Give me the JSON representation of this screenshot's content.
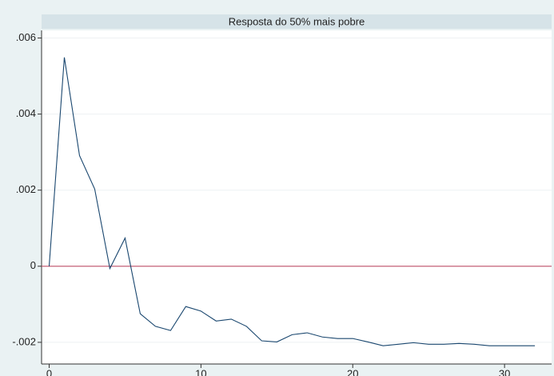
{
  "chart_data": {
    "type": "line",
    "title": "Resposta do 50% mais pobre",
    "x": [
      0,
      1,
      2,
      3,
      4,
      5,
      6,
      7,
      8,
      9,
      10,
      11,
      12,
      13,
      14,
      15,
      16,
      17,
      18,
      19,
      20,
      21,
      22,
      23,
      24,
      25,
      26,
      27,
      28,
      29,
      30,
      31,
      32
    ],
    "series": [
      {
        "color": "#1a476f",
        "values": [
          0,
          0.00549,
          0.00291,
          0.00203,
          -6e-05,
          0.00074,
          -0.00125,
          -0.00158,
          -0.00169,
          -0.00106,
          -0.00118,
          -0.00144,
          -0.00139,
          -0.00158,
          -0.00196,
          -0.00199,
          -0.0018,
          -0.00175,
          -0.00186,
          -0.0019,
          -0.0019,
          -0.00199,
          -0.00209,
          -0.00205,
          -0.00201,
          -0.00205,
          -0.00205,
          -0.00203,
          -0.00205,
          -0.00209,
          -0.00209,
          -0.00209,
          -0.00209
        ]
      }
    ],
    "xlim": [
      -0.5,
      33.1
    ],
    "ylim": [
      -0.00257,
      0.0062
    ],
    "xticks": [
      0,
      10,
      20,
      30
    ],
    "yticks": [
      {
        "value": -0.002,
        "label": "-.002"
      },
      0,
      {
        "value": 0.002,
        "label": ".002"
      },
      {
        "value": 0.004,
        "label": ".004"
      },
      {
        "value": 0.006,
        "label": ".006"
      }
    ],
    "reference_line": {
      "value": 0,
      "color": "#c0506a"
    },
    "grid": true
  }
}
